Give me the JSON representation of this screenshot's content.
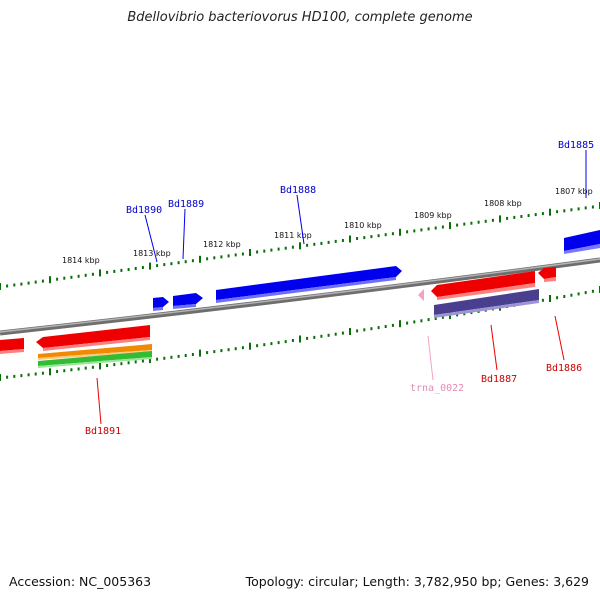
{
  "title": "Bdellovibrio bacteriovorus HD100, complete genome",
  "footer": {
    "accession": "Accession: NC_005363",
    "summary": "Topology: circular; Length: 3,782,950 bp; Genes: 3,629"
  },
  "ruler_labels": [
    "1807 kbp",
    "1808 kbp",
    "1809 kbp",
    "1810 kbp",
    "1811 kbp",
    "1812 kbp",
    "1813 kbp",
    "1814 kbp"
  ],
  "gene_labels": {
    "bd1885": "Bd1885",
    "bd1888": "Bd1888",
    "bd1889": "Bd1889",
    "bd1890": "Bd1890",
    "bd1891": "Bd1891",
    "bd1887": "Bd1887",
    "bd1886": "Bd1886",
    "trna": "trna_0022"
  },
  "colors": {
    "forward_gene": "#0000ee",
    "reverse_gene": "#ee0000",
    "trna": "#f4a0c8",
    "tick": "#0b6e0b",
    "backbone": "#888888",
    "purple_feature": "#4a3f8f",
    "orange_feature": "#f08a00",
    "green_feature": "#33bb33"
  }
}
